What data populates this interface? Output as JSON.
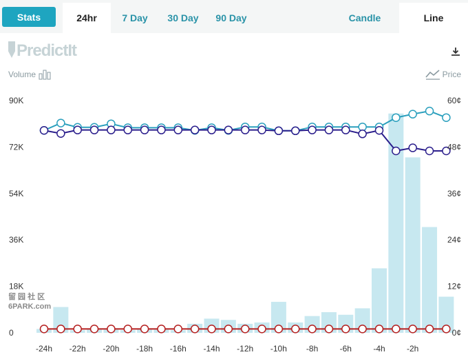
{
  "tabs": {
    "stats": "Stats",
    "h24": "24hr",
    "d7": "7 Day",
    "d30": "30 Day",
    "d90": "90 Day",
    "candle": "Candle",
    "line": "Line"
  },
  "logo_text": "PredictIt",
  "legend": {
    "volume": "Volume",
    "price": "Price"
  },
  "watermark": {
    "line1": "留 园 社 区",
    "line2": "6PARK.com"
  },
  "colors": {
    "accent": "#1ea5c0",
    "bar": "#c7e8f0",
    "series_teal": "#2a9fbd",
    "series_navy": "#2b1e8c",
    "series_red": "#b51f1f"
  },
  "chart_data": {
    "type": "bar",
    "left_axis_ticks": [
      "90K",
      "72K",
      "54K",
      "36K",
      "18K",
      "0"
    ],
    "right_axis_ticks": [
      "60¢",
      "48¢",
      "36¢",
      "24¢",
      "12¢",
      "0¢"
    ],
    "x_ticks": [
      "-24h",
      "-22h",
      "-20h",
      "-18h",
      "-16h",
      "-14h",
      "-12h",
      "-10h",
      "-8h",
      "-6h",
      "-4h",
      "-2h"
    ],
    "volume_ylim": [
      0,
      90000
    ],
    "price_ylim": [
      0,
      60
    ],
    "volume": [
      1500,
      10000,
      1000,
      1500,
      1200,
      1000,
      1500,
      1200,
      1000,
      3500,
      5500,
      5000,
      3500,
      4000,
      12000,
      4000,
      6500,
      8000,
      7000,
      9500,
      25000,
      85000,
      68000,
      41000,
      14000
    ],
    "series": [
      {
        "values": [
          52.3,
          54.2,
          53.1,
          53.1,
          54.0,
          53.0,
          53.0,
          53.0,
          53.0,
          52.3,
          53.0,
          52.3,
          53.2,
          53.2,
          52.2,
          52.2,
          53.2,
          53.2,
          53.2,
          53.2,
          53.2,
          55.6,
          56.5,
          57.3,
          55.6
        ]
      },
      {
        "values": [
          52.3,
          51.5,
          52.4,
          52.4,
          52.4,
          52.4,
          52.4,
          52.4,
          52.4,
          52.4,
          52.4,
          52.4,
          52.4,
          52.4,
          52.2,
          52.2,
          52.4,
          52.4,
          52.4,
          51.4,
          52.3,
          47.0,
          47.8,
          47.0,
          47.0
        ]
      },
      {
        "values": [
          1,
          1,
          1,
          1,
          1,
          1,
          1,
          1,
          1,
          1,
          1,
          1,
          1,
          1,
          1,
          1,
          1,
          1,
          1,
          1,
          1,
          1,
          1,
          1,
          1
        ]
      }
    ]
  }
}
